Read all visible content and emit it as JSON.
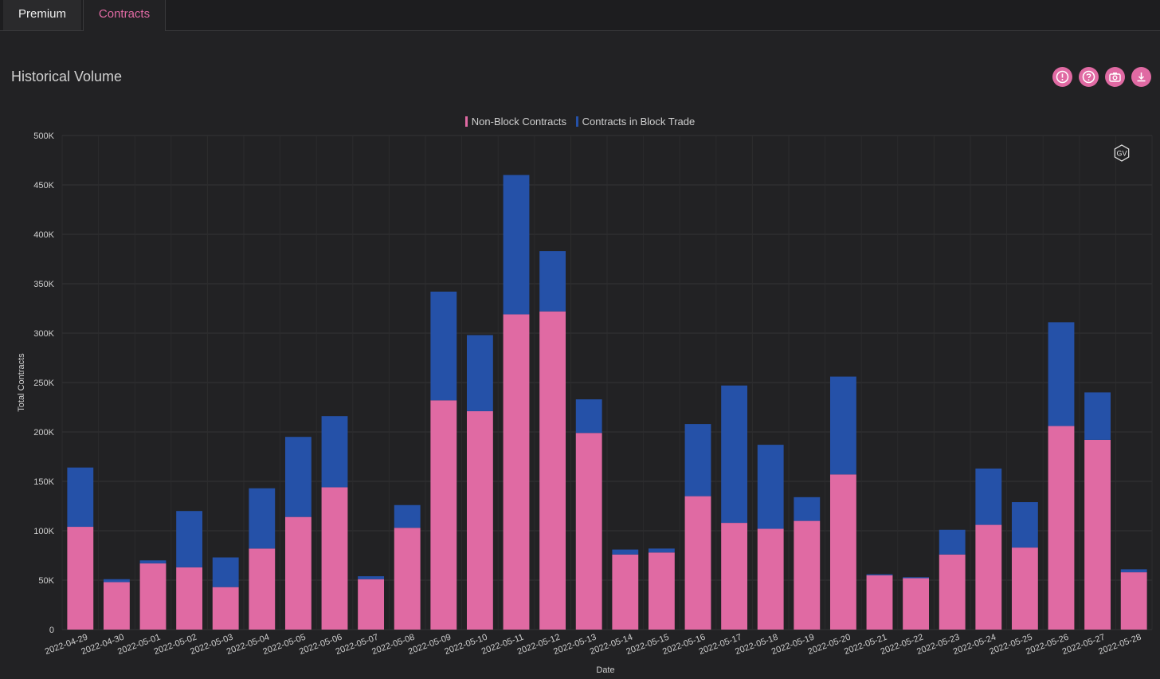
{
  "tabs": [
    {
      "label": "Premium",
      "active": false
    },
    {
      "label": "Contracts",
      "active": true
    }
  ],
  "title": "Historical Volume",
  "toolbar": {
    "icons": [
      "alert-icon",
      "help-icon",
      "camera-icon",
      "download-icon"
    ],
    "accent": "#e06aa3"
  },
  "watermark": "GV",
  "chart_data": {
    "type": "bar",
    "stacked": true,
    "xlabel": "Date",
    "ylabel": "Total Contracts",
    "ylim": [
      0,
      500000
    ],
    "yticks": [
      0,
      50000,
      100000,
      150000,
      200000,
      250000,
      300000,
      350000,
      400000,
      450000,
      500000
    ],
    "ytick_labels": [
      "0",
      "50K",
      "100K",
      "150K",
      "200K",
      "250K",
      "300K",
      "350K",
      "400K",
      "450K",
      "500K"
    ],
    "legend_position": "top-center",
    "grid": true,
    "categories": [
      "2022-04-29",
      "2022-04-30",
      "2022-05-01",
      "2022-05-02",
      "2022-05-03",
      "2022-05-04",
      "2022-05-05",
      "2022-05-06",
      "2022-05-07",
      "2022-05-08",
      "2022-05-09",
      "2022-05-10",
      "2022-05-11",
      "2022-05-12",
      "2022-05-13",
      "2022-05-14",
      "2022-05-15",
      "2022-05-16",
      "2022-05-17",
      "2022-05-18",
      "2022-05-19",
      "2022-05-20",
      "2022-05-21",
      "2022-05-22",
      "2022-05-23",
      "2022-05-24",
      "2022-05-25",
      "2022-05-26",
      "2022-05-27",
      "2022-05-28"
    ],
    "series": [
      {
        "name": "Non-Block Contracts",
        "color": "#e06aa3",
        "values": [
          104000,
          48000,
          67000,
          63000,
          43000,
          82000,
          114000,
          144000,
          51000,
          103000,
          232000,
          221000,
          319000,
          322000,
          199000,
          76000,
          78000,
          135000,
          108000,
          102000,
          110000,
          157000,
          55000,
          52000,
          76000,
          106000,
          83000,
          206000,
          192000,
          58000
        ]
      },
      {
        "name": "Contracts in Block Trade",
        "color": "#2551a8",
        "values": [
          60000,
          3000,
          3000,
          57000,
          30000,
          61000,
          81000,
          72000,
          3000,
          23000,
          110000,
          77000,
          141000,
          61000,
          34000,
          5000,
          4000,
          73000,
          139000,
          85000,
          24000,
          99000,
          1000,
          1000,
          25000,
          57000,
          46000,
          105000,
          48000,
          3000
        ]
      }
    ]
  }
}
